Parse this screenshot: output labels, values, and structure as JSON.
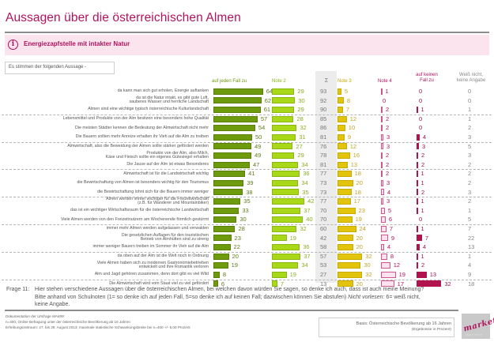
{
  "header": {
    "title": "Aussagen über die österreichischen Almen",
    "subtitle": "Energiezapfstelle mit intakter Natur",
    "info_icon": "info-circle-icon",
    "question_box": "Es stimmen der folgenden Aussage -"
  },
  "colors": {
    "brand": "#b0135e",
    "note1": "#6e9a0e",
    "note2": "#a8d818",
    "note3": "#e2c40a",
    "note4": "#f5b3cf",
    "note5": "#b0134e",
    "sigma_bg": "#ececec"
  },
  "columns": {
    "c1": "auf jeden Fall zu",
    "c2": "Note 2",
    "sigma": "Σ",
    "c3": "Note 3",
    "c4": "Note 4",
    "c5": "auf keinen\nFall zu",
    "c6": "Weiß nicht,\nkeine Angabe"
  },
  "chart_data": {
    "type": "bar",
    "title": "Aussagen über die österreichischen Almen",
    "subtitle": "Energiezapfstelle mit intakter Natur",
    "xlabel": "",
    "ylabel": "",
    "unit": "Prozent",
    "series_names": [
      "auf jeden Fall zu",
      "Note 2",
      "Σ",
      "Note 3",
      "Note 4",
      "auf keinen Fall zu",
      "Weiß nicht, keine Angabe"
    ],
    "categories": [
      "da kann man sich gut erholen, Energie auftanken",
      "da ist die Natur intakt, es gibt gute Luft,\nsauberes Wasser und herrliche Landschaft",
      "Almen sind eine wichtige typisch österreichische Kulturlandschaft",
      "Lebensmittel und Produkte von der Alm besitzen eine besonders hohe Qualität",
      "Die meisten Städter kennen die Bedeutung der Almwirtschaft nicht mehr",
      "Die Bauern sollten mehr Anreize erhalten ihr Vieh auf die Alm zu treiben",
      "Almwirtschaft, also die Beweidung der Almen sollte stärker gefördert werden",
      "Produkte von der Alm, also Milch,\nKäse und Fleisch sollte ein eigenes Gütesiegel erhalten",
      "Die Jause auf der Alm ist etwas Besonderes",
      "Almwirtschaft ist für die Landwirtschaft wichtig",
      "die Bewirtschaftung von Almen ist besonders wichtig für den Tourismus",
      "die Bewirtschaftung lohnt sich für die Bauern immer weniger",
      "Almen werden immer wichtiger für die Freizeitwirtschaft\n(z.B. für Wanderer und Mountainbiker)",
      "das ist ein wichtiger Wirtschaftsraum für die österreichische Landwirtschaft",
      "Viele Almen werden von den Freizeitnutzern am Wochenende förmlich gestürmt",
      "immer mehr Almen werden aufgelassen und verwalden",
      "Die gesetzlichen Auflagen für den touristischen\nBetrieb von Almhütten sind zu streng",
      "immer weniger Bauern treiben im Sommer ihr Vieh auf die Alm",
      "da oben auf der Alm ist die Welt noch in Ordnung",
      "Viele Almen haben sich zu modernen Gastronomiebetrieben\nentwickelt und ihre Romantik verloren",
      "Alm und Jagd gehören zusammen, denn dort gibt es viel Wild",
      "Die Almwirtschaft wird vom Staat viel zu viel gefördert"
    ],
    "series": [
      {
        "name": "auf jeden Fall zu",
        "values": [
          64,
          62,
          61,
          57,
          54,
          50,
          49,
          49,
          47,
          41,
          39,
          38,
          35,
          33,
          30,
          28,
          23,
          22,
          20,
          19,
          8,
          6
        ]
      },
      {
        "name": "Note 2",
        "values": [
          29,
          30,
          29,
          28,
          32,
          31,
          27,
          29,
          34,
          36,
          34,
          35,
          42,
          37,
          40,
          32,
          19,
          36,
          37,
          34,
          19,
          7
        ]
      },
      {
        "name": "Σ",
        "values": [
          93,
          92,
          90,
          85,
          86,
          81,
          76,
          78,
          81,
          77,
          73,
          73,
          77,
          70,
          70,
          60,
          42,
          58,
          57,
          53,
          27,
          13
        ]
      },
      {
        "name": "Note 3",
        "values": [
          5,
          8,
          7,
          12,
          10,
          9,
          12,
          16,
          13,
          18,
          20,
          18,
          17,
          23,
          19,
          24,
          20,
          20,
          32,
          30,
          32,
          20
        ]
      },
      {
        "name": "Note 4",
        "values": [
          1,
          0,
          2,
          2,
          2,
          3,
          3,
          2,
          2,
          2,
          3,
          4,
          3,
          5,
          6,
          7,
          9,
          4,
          8,
          12,
          19,
          17
        ]
      },
      {
        "name": "auf keinen Fall zu",
        "values": [
          0,
          0,
          1,
          0,
          0,
          4,
          3,
          2,
          2,
          1,
          1,
          2,
          1,
          1,
          0,
          1,
          7,
          4,
          1,
          2,
          13,
          32
        ]
      },
      {
        "name": "Weiß nicht, keine Angabe",
        "values": [
          0,
          0,
          1,
          1,
          2,
          3,
          5,
          3,
          2,
          2,
          2,
          3,
          2,
          1,
          5,
          7,
          22,
          13,
          1,
          4,
          9,
          18
        ]
      }
    ],
    "grid": false,
    "legend": "top"
  },
  "footer": {
    "frage_label": "Frage 11:",
    "frage_text_1": "Hier stehen verschiedene Aussagen über die österreichischen Almen, bei welchen davon würden Sie sagen, so denke ich auch, dass ist auch meine Meinung?",
    "frage_text_2": "Bitte anhand von Schulnoten (1= so denke ich auf jeden Fall, 5=so denke ich auf keinen Fall; dazwischen können Sie abstufen)",
    "frage_text_2_italic": "Nicht vorlesen:",
    "frage_text_2_end": "6= weiß nicht,",
    "frage_text_3": "keine Angabe.",
    "doc_title": "Dokumentation der Umfrage MA699:",
    "doc_line1": "n=400, Online Befragung unter der österreichische Bevölkerung ab 16 Jahren",
    "doc_line2": "Erhebungszeitraum: 27. bis 29. August 2013; maximale statistische Schwankungsbreite bei n=400 +/- 5,00 Prozent",
    "basis_line1": "Basis: Österreichische Bevölkerung ab 16 Jahren",
    "basis_line2": "(Ergebnisse in Prozent)",
    "logo_text": "market",
    "logo_sub": "INSTITUT"
  }
}
